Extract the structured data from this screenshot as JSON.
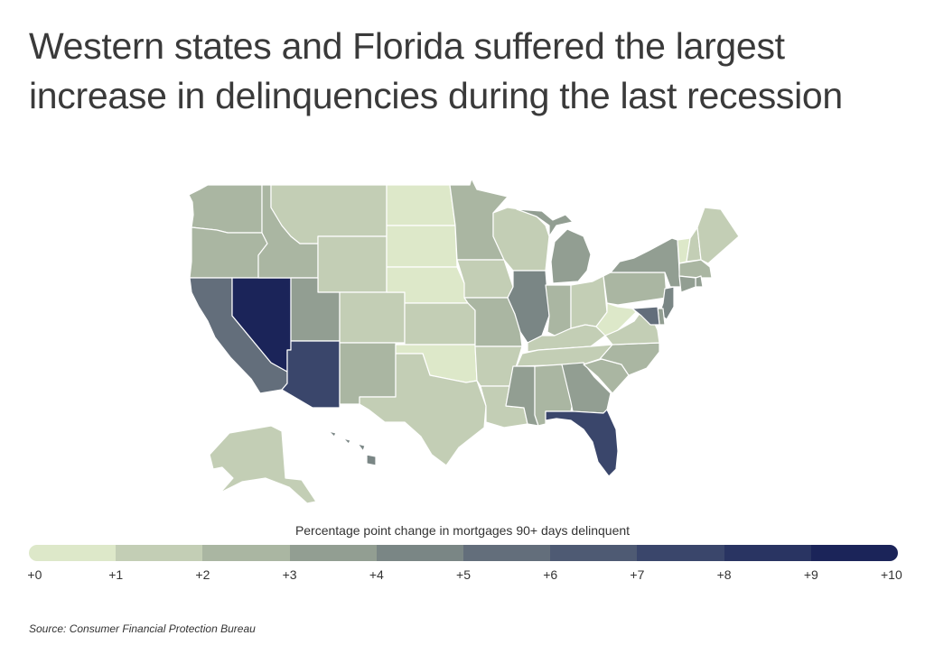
{
  "title_lines": [
    "Western states and Florida suffered the largest",
    "increase in delinquencies during the last recession"
  ],
  "legend": {
    "title": "Percentage point change in mortgages 90+ days delinquent",
    "ticks": [
      "+0",
      "+1",
      "+2",
      "+3",
      "+4",
      "+5",
      "+6",
      "+7",
      "+8",
      "+9",
      "+10"
    ],
    "colors": [
      "#dde8c9",
      "#c3ceb5",
      "#aab6a2",
      "#929e92",
      "#7a8685",
      "#636e7b",
      "#4e5a73",
      "#3a466b",
      "#293462",
      "#1b2459"
    ]
  },
  "source": "Source:  Consumer Financial Protection Bureau",
  "map": {
    "border_color": "#ffffff",
    "states": [
      {
        "id": "WA",
        "value": 2.5
      },
      {
        "id": "OR",
        "value": 2.0
      },
      {
        "id": "CA",
        "value": 5.5
      },
      {
        "id": "NV",
        "value": 10.0
      },
      {
        "id": "ID",
        "value": 2.0
      },
      {
        "id": "MT",
        "value": 1.0
      },
      {
        "id": "WY",
        "value": 1.0
      },
      {
        "id": "UT",
        "value": 3.5
      },
      {
        "id": "AZ",
        "value": 7.0
      },
      {
        "id": "CO",
        "value": 1.0
      },
      {
        "id": "NM",
        "value": 2.0
      },
      {
        "id": "ND",
        "value": 0.2
      },
      {
        "id": "SD",
        "value": 0.4
      },
      {
        "id": "NE",
        "value": 0.5
      },
      {
        "id": "KS",
        "value": 1.0
      },
      {
        "id": "OK",
        "value": 0.9
      },
      {
        "id": "TX",
        "value": 1.8
      },
      {
        "id": "MN",
        "value": 2.2
      },
      {
        "id": "IA",
        "value": 1.0
      },
      {
        "id": "MO",
        "value": 2.0
      },
      {
        "id": "AR",
        "value": 1.2
      },
      {
        "id": "LA",
        "value": 1.8
      },
      {
        "id": "WI",
        "value": 1.3
      },
      {
        "id": "IL",
        "value": 4.0
      },
      {
        "id": "MI",
        "value": 3.5
      },
      {
        "id": "IN",
        "value": 2.0
      },
      {
        "id": "OH",
        "value": 1.8
      },
      {
        "id": "KY",
        "value": 1.0
      },
      {
        "id": "TN",
        "value": 1.8
      },
      {
        "id": "MS",
        "value": 3.2
      },
      {
        "id": "AL",
        "value": 2.0
      },
      {
        "id": "GA",
        "value": 3.5
      },
      {
        "id": "FL",
        "value": 7.0
      },
      {
        "id": "SC",
        "value": 2.0
      },
      {
        "id": "NC",
        "value": 2.0
      },
      {
        "id": "VA",
        "value": 1.8
      },
      {
        "id": "WV",
        "value": 0.8
      },
      {
        "id": "PA",
        "value": 2.0
      },
      {
        "id": "NY",
        "value": 3.0
      },
      {
        "id": "VT",
        "value": 0.8
      },
      {
        "id": "NH",
        "value": 1.8
      },
      {
        "id": "ME",
        "value": 1.8
      },
      {
        "id": "MA",
        "value": 2.8
      },
      {
        "id": "RI",
        "value": 3.0
      },
      {
        "id": "CT",
        "value": 3.5
      },
      {
        "id": "NJ",
        "value": 4.5
      },
      {
        "id": "DE",
        "value": 3.0
      },
      {
        "id": "MD",
        "value": 5.5
      },
      {
        "id": "AK",
        "value": 1.8
      },
      {
        "id": "HI",
        "value": 4.0
      }
    ]
  }
}
